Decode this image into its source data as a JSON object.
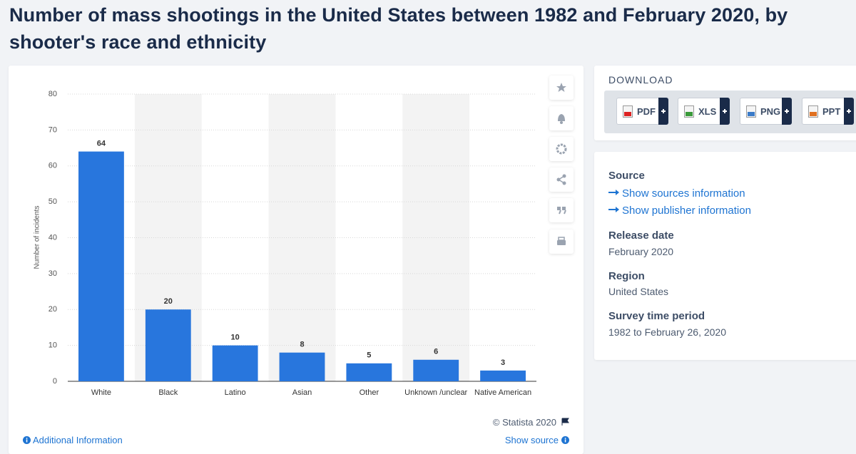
{
  "header": {
    "title": "Number of mass shootings in the United States between 1982 and February 2020, by shooter's race and ethnicity"
  },
  "chart_data": {
    "type": "bar",
    "y_label": "Number of incidents",
    "categories": [
      "White",
      "Black",
      "Latino",
      "Asian",
      "Other",
      "Unknown /unclear",
      "Native American"
    ],
    "values": [
      64,
      20,
      10,
      8,
      5,
      6,
      3
    ],
    "color": "#2876dd",
    "ylim": [
      0,
      80
    ],
    "yticks": [
      0,
      10,
      20,
      30,
      40,
      50,
      60,
      70,
      80
    ],
    "grid": true
  },
  "chart_footer": {
    "copyright": "© Statista 2020",
    "additional_info": "Additional Information",
    "show_source": "Show source"
  },
  "download": {
    "title": "DOWNLOAD",
    "buttons": [
      "PDF",
      "XLS",
      "PNG",
      "PPT"
    ]
  },
  "details": {
    "source_heading": "Source",
    "source_links": [
      "Show sources information",
      "Show publisher information"
    ],
    "items": [
      {
        "label": "Release date",
        "value": "February 2020"
      },
      {
        "label": "Region",
        "value": "United States"
      },
      {
        "label": "Survey time period",
        "value": "1982 to February 26, 2020"
      }
    ]
  }
}
